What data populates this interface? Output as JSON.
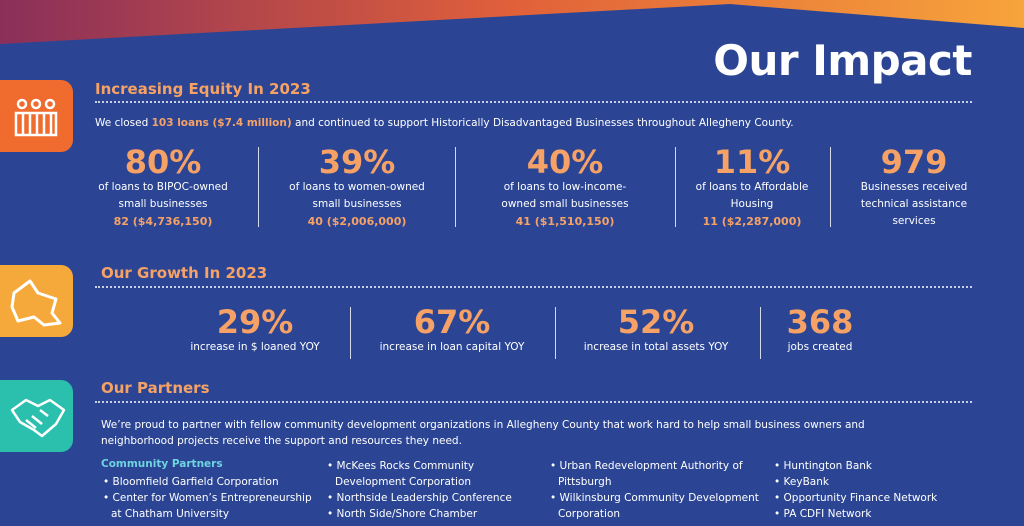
{
  "header": {
    "title": "Our Impact"
  },
  "equity": {
    "heading": "Increasing Equity In 2023",
    "intro": [
      "We closed ",
      "103 loans ($7.4 million)",
      " and continued to support Historically Disadvantaged Businesses throughout Allegheny County."
    ],
    "stats": [
      {
        "figure": "80%",
        "label": "of loans to BIPOC-owned small businesses",
        "detail": "82 ($4,736,150)"
      },
      {
        "figure": "39%",
        "label": "of loans to women-owned small businesses",
        "detail": "40 ($2,006,000)"
      },
      {
        "figure": "40%",
        "label": "of loans to low-income-owned small businesses",
        "detail": "41 ($1,510,150)"
      },
      {
        "figure": "11%",
        "label": "of loans to Affordable Housing",
        "detail": "11 ($2,287,000)"
      },
      {
        "figure": "979",
        "label": "Businesses received technical assistance services"
      }
    ]
  },
  "growth": {
    "heading": "Our Growth In 2023",
    "stats": [
      {
        "figure": "29%",
        "label": "increase in $ loaned YOY"
      },
      {
        "figure": "67%",
        "label": "increase in loan capital YOY"
      },
      {
        "figure": "52%",
        "label": "increase in total assets YOY"
      },
      {
        "figure": "368",
        "label": "jobs created"
      }
    ]
  },
  "partners": {
    "heading": "Our Partners",
    "intro": "We’re proud to partner with fellow community development organizations in Allegheny County that work hard to help small business owners and neighborhood projects receive the support and resources they need.",
    "subheading": "Community Partners",
    "columns": [
      [
        "Bloomfield Garfield Corporation",
        "Center for Women’s Entrepreneurship at Chatham University"
      ],
      [
        "McKees Rocks Community Development Corporation",
        "Northside Leadership Conference",
        "North Side/Shore Chamber"
      ],
      [
        "Urban Redevelopment Authority of Pittsburgh",
        "Wilkinsburg Community Development Corporation"
      ],
      [
        "Huntington Bank",
        "KeyBank",
        "Opportunity Finance Network",
        "PA CDFI Network"
      ]
    ]
  }
}
